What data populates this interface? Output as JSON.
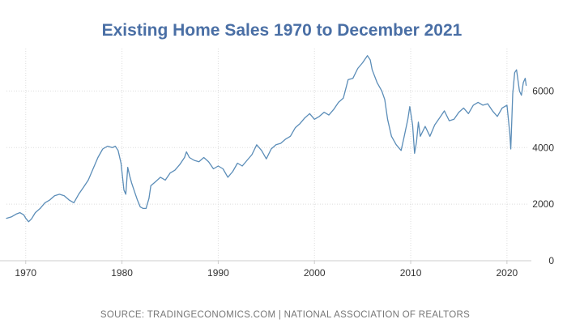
{
  "chart_data": {
    "type": "line",
    "title": "Existing Home Sales 1970 to December 2021",
    "xlabel": "",
    "ylabel": "",
    "xlim": [
      1968.0,
      2022.2
    ],
    "ylim": [
      0,
      7500
    ],
    "x_ticks": [
      1970,
      1980,
      1990,
      2000,
      2010,
      2020
    ],
    "x_tick_labels": [
      "1970",
      "1980",
      "1990",
      "2000",
      "2010",
      "2020"
    ],
    "y_ticks": [
      0,
      2000,
      4000,
      6000
    ],
    "y_tick_labels": [
      "0",
      "2000",
      "4000",
      "6000"
    ],
    "grid": true,
    "legend": "none",
    "series": [
      {
        "name": "Existing Home Sales",
        "color": "#5b8db8",
        "points": [
          [
            1968.0,
            1500
          ],
          [
            1968.5,
            1550
          ],
          [
            1969.0,
            1650
          ],
          [
            1969.4,
            1700
          ],
          [
            1969.8,
            1620
          ],
          [
            1970.0,
            1500
          ],
          [
            1970.3,
            1380
          ],
          [
            1970.6,
            1480
          ],
          [
            1971.0,
            1700
          ],
          [
            1971.5,
            1850
          ],
          [
            1972.0,
            2050
          ],
          [
            1972.5,
            2150
          ],
          [
            1973.0,
            2300
          ],
          [
            1973.5,
            2350
          ],
          [
            1974.0,
            2300
          ],
          [
            1974.5,
            2150
          ],
          [
            1975.0,
            2050
          ],
          [
            1975.5,
            2350
          ],
          [
            1976.0,
            2600
          ],
          [
            1976.5,
            2850
          ],
          [
            1977.0,
            3250
          ],
          [
            1977.5,
            3650
          ],
          [
            1978.0,
            3950
          ],
          [
            1978.5,
            4050
          ],
          [
            1979.0,
            4000
          ],
          [
            1979.3,
            4050
          ],
          [
            1979.6,
            3900
          ],
          [
            1979.9,
            3450
          ],
          [
            1980.2,
            2500
          ],
          [
            1980.4,
            2350
          ],
          [
            1980.6,
            3300
          ],
          [
            1980.8,
            3000
          ],
          [
            1981.0,
            2750
          ],
          [
            1981.3,
            2450
          ],
          [
            1981.6,
            2150
          ],
          [
            1981.9,
            1900
          ],
          [
            1982.2,
            1850
          ],
          [
            1982.5,
            1850
          ],
          [
            1982.8,
            2200
          ],
          [
            1983.0,
            2650
          ],
          [
            1983.5,
            2800
          ],
          [
            1984.0,
            2950
          ],
          [
            1984.5,
            2850
          ],
          [
            1985.0,
            3100
          ],
          [
            1985.5,
            3200
          ],
          [
            1986.0,
            3400
          ],
          [
            1986.5,
            3650
          ],
          [
            1986.7,
            3850
          ],
          [
            1987.0,
            3650
          ],
          [
            1987.5,
            3550
          ],
          [
            1988.0,
            3500
          ],
          [
            1988.5,
            3650
          ],
          [
            1989.0,
            3500
          ],
          [
            1989.5,
            3250
          ],
          [
            1990.0,
            3350
          ],
          [
            1990.5,
            3250
          ],
          [
            1991.0,
            2950
          ],
          [
            1991.5,
            3150
          ],
          [
            1992.0,
            3450
          ],
          [
            1992.5,
            3350
          ],
          [
            1993.0,
            3550
          ],
          [
            1993.5,
            3750
          ],
          [
            1994.0,
            4100
          ],
          [
            1994.5,
            3900
          ],
          [
            1995.0,
            3600
          ],
          [
            1995.5,
            3950
          ],
          [
            1996.0,
            4100
          ],
          [
            1996.5,
            4150
          ],
          [
            1997.0,
            4300
          ],
          [
            1997.5,
            4400
          ],
          [
            1998.0,
            4700
          ],
          [
            1998.5,
            4850
          ],
          [
            1999.0,
            5050
          ],
          [
            1999.5,
            5200
          ],
          [
            2000.0,
            5000
          ],
          [
            2000.5,
            5100
          ],
          [
            2001.0,
            5250
          ],
          [
            2001.5,
            5150
          ],
          [
            2002.0,
            5350
          ],
          [
            2002.5,
            5600
          ],
          [
            2003.0,
            5750
          ],
          [
            2003.5,
            6400
          ],
          [
            2004.0,
            6450
          ],
          [
            2004.5,
            6800
          ],
          [
            2005.0,
            7000
          ],
          [
            2005.5,
            7250
          ],
          [
            2005.8,
            7100
          ],
          [
            2006.0,
            6750
          ],
          [
            2006.5,
            6300
          ],
          [
            2007.0,
            6000
          ],
          [
            2007.3,
            5700
          ],
          [
            2007.6,
            5000
          ],
          [
            2008.0,
            4400
          ],
          [
            2008.5,
            4100
          ],
          [
            2009.0,
            3900
          ],
          [
            2009.3,
            4350
          ],
          [
            2009.7,
            5000
          ],
          [
            2009.9,
            5450
          ],
          [
            2010.2,
            4800
          ],
          [
            2010.4,
            3800
          ],
          [
            2010.6,
            4200
          ],
          [
            2010.8,
            4900
          ],
          [
            2011.0,
            4400
          ],
          [
            2011.5,
            4750
          ],
          [
            2012.0,
            4400
          ],
          [
            2012.5,
            4800
          ],
          [
            2013.0,
            5050
          ],
          [
            2013.5,
            5300
          ],
          [
            2014.0,
            4950
          ],
          [
            2014.5,
            5000
          ],
          [
            2015.0,
            5250
          ],
          [
            2015.5,
            5400
          ],
          [
            2016.0,
            5200
          ],
          [
            2016.5,
            5500
          ],
          [
            2017.0,
            5600
          ],
          [
            2017.5,
            5500
          ],
          [
            2018.0,
            5550
          ],
          [
            2018.5,
            5300
          ],
          [
            2019.0,
            5100
          ],
          [
            2019.5,
            5400
          ],
          [
            2020.0,
            5500
          ],
          [
            2020.3,
            4500
          ],
          [
            2020.4,
            3950
          ],
          [
            2020.6,
            5900
          ],
          [
            2020.8,
            6650
          ],
          [
            2021.0,
            6750
          ],
          [
            2021.3,
            6000
          ],
          [
            2021.5,
            5850
          ],
          [
            2021.7,
            6300
          ],
          [
            2021.9,
            6450
          ],
          [
            2022.0,
            6200
          ]
        ]
      }
    ]
  },
  "footer": {
    "source": "SOURCE: TRADINGECONOMICS.COM | NATIONAL ASSOCIATION OF REALTORS"
  },
  "colors": {
    "title": "#4a6fa5",
    "line": "#5b8db8",
    "grid": "#dddddd",
    "baseline": "#cccccc",
    "source": "#777777"
  }
}
